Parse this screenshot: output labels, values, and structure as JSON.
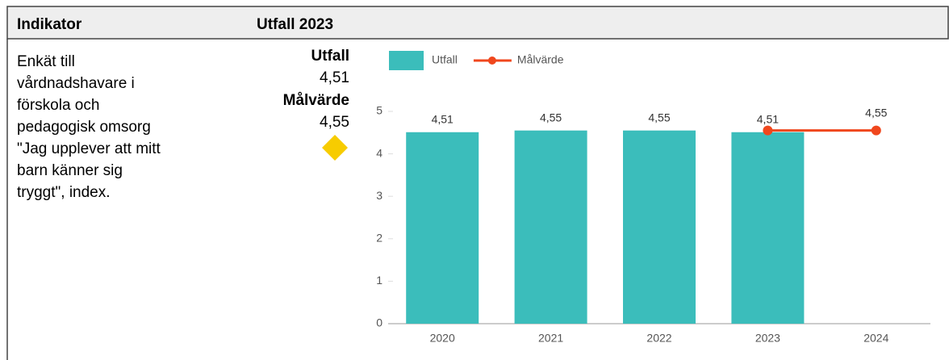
{
  "table": {
    "headers": [
      "Indikator",
      "Utfall 2023"
    ],
    "indicator": "Enkät till vårdnadshavare i förskola och pedagogisk omsorg \"Jag upplever att mitt barn känner sig tryggt\", index.",
    "outcome_label": "Utfall",
    "outcome_value": "4,51",
    "target_label": "Målvärde",
    "target_value": "4,55"
  },
  "chart_data": {
    "type": "bar_line",
    "categories": [
      "2020",
      "2021",
      "2022",
      "2023",
      "2024"
    ],
    "series": [
      {
        "name": "Utfall",
        "type": "bar",
        "color": "#3bbdbb",
        "values": [
          4.51,
          4.55,
          4.55,
          4.51,
          null
        ],
        "value_labels": [
          "4,51",
          "4,55",
          "4,55",
          "4,51",
          null
        ]
      },
      {
        "name": "Målvärde",
        "type": "line",
        "color": "#f0471d",
        "values": [
          null,
          null,
          null,
          4.55,
          4.55
        ],
        "value_labels": [
          null,
          null,
          null,
          null,
          "4,55"
        ]
      }
    ],
    "ylim": [
      0,
      5
    ],
    "yticks": [
      0,
      1,
      2,
      3,
      4,
      5
    ],
    "grid": false,
    "legend": "top-left"
  }
}
